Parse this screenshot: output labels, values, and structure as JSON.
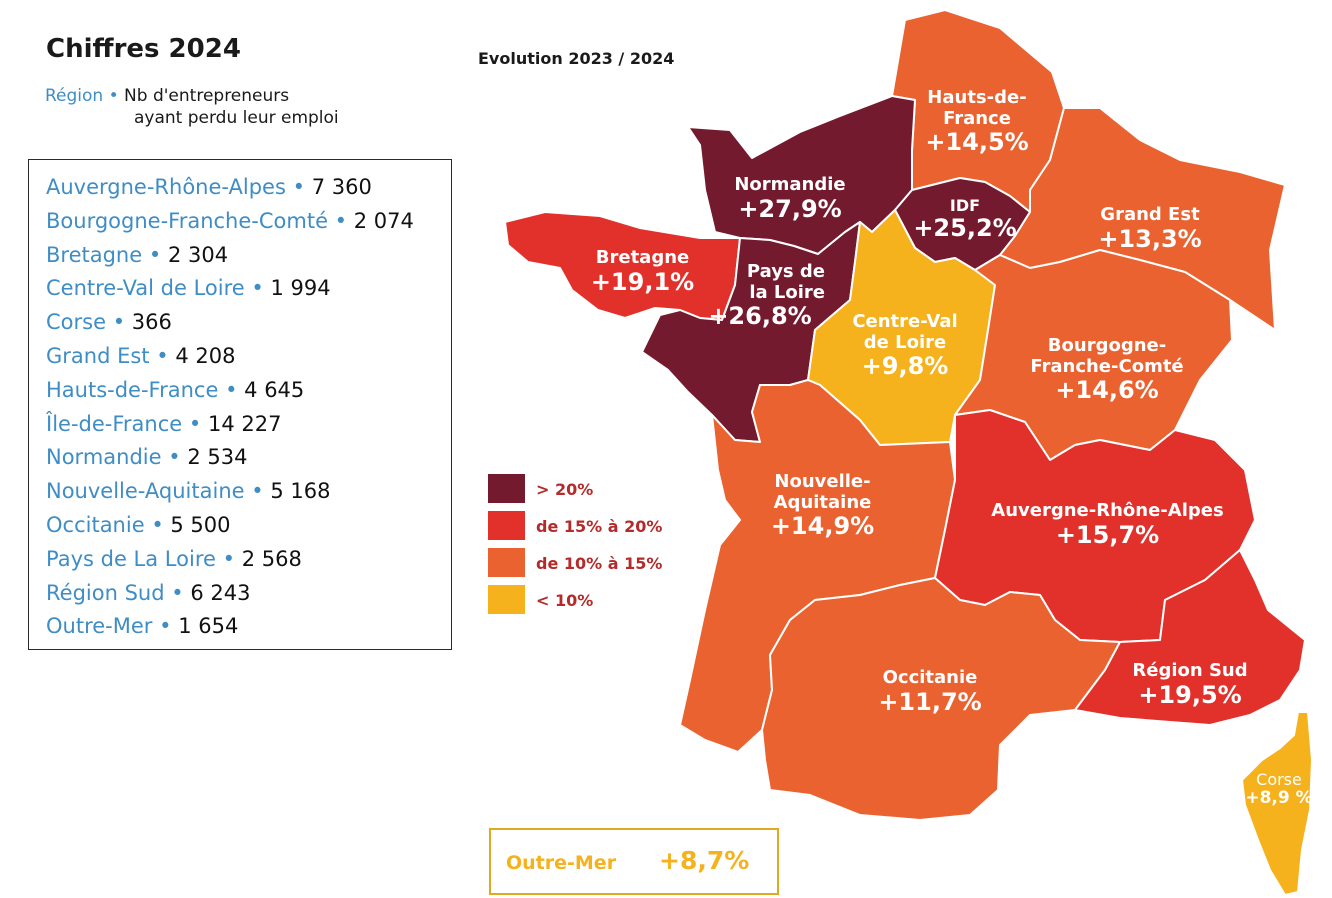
{
  "header": {
    "title": "Chiffres 2024",
    "subtitle_region": "Région",
    "subtitle_bullet": "•",
    "subtitle_line1": "Nb d'entrepreneurs",
    "subtitle_line2": "ayant perdu leur emploi",
    "evolution": "Evolution 2023 / 2024"
  },
  "list": [
    {
      "name": "Auvergne-Rhône-Alpes",
      "value": "7 360"
    },
    {
      "name": "Bourgogne-Franche-Comté",
      "value": "2 074"
    },
    {
      "name": "Bretagne",
      "value": "2 304"
    },
    {
      "name": "Centre-Val de Loire",
      "value": "1 994"
    },
    {
      "name": "Corse",
      "value": "366"
    },
    {
      "name": "Grand Est",
      "value": "4 208"
    },
    {
      "name": "Hauts-de-France",
      "value": "4 645"
    },
    {
      "name": "Île-de-France",
      "value": "14 227"
    },
    {
      "name": "Normandie",
      "value": "2 534"
    },
    {
      "name": "Nouvelle-Aquitaine",
      "value": "5 168"
    },
    {
      "name": "Occitanie",
      "value": "5 500"
    },
    {
      "name": "Pays de La Loire",
      "value": "2 568"
    },
    {
      "name": "Région Sud",
      "value": "6 243"
    },
    {
      "name": "Outre-Mer",
      "value": "1 654"
    }
  ],
  "legend": [
    {
      "label": "> 20%",
      "color": "#731a2f"
    },
    {
      "label": "de 15% à 20%",
      "color": "#e2302b"
    },
    {
      "label": "de 10% à 15%",
      "color": "#e96230"
    },
    {
      "label": "< 10%",
      "color": "#f5b21d"
    }
  ],
  "map_regions": [
    {
      "name": "Hauts-de-France",
      "value": "+14,5%",
      "color": "#e96230"
    },
    {
      "name": "Normandie",
      "value": "+27,9%",
      "color": "#731a2f"
    },
    {
      "name": "IDF",
      "value": "+25,2%",
      "color": "#731a2f"
    },
    {
      "name": "Grand Est",
      "value": "+13,3%",
      "color": "#e96230"
    },
    {
      "name": "Bretagne",
      "value": "+19,1%",
      "color": "#e2302b"
    },
    {
      "name": "Pays de la Loire",
      "value": "+26,8%",
      "color": "#731a2f"
    },
    {
      "name": "Centre-Val de Loire",
      "value": "+9,8%",
      "color": "#f5b21d"
    },
    {
      "name": "Bourgogne-Franche-Comté",
      "value": "+14,6%",
      "color": "#e96230"
    },
    {
      "name": "Nouvelle-Aquitaine",
      "value": "+14,9%",
      "color": "#e96230"
    },
    {
      "name": "Auvergne-Rhône-Alpes",
      "value": "+15,7%",
      "color": "#e2302b"
    },
    {
      "name": "Occitanie",
      "value": "+11,7%",
      "color": "#e96230"
    },
    {
      "name": "Région Sud",
      "value": "+19,5%",
      "color": "#e2302b"
    },
    {
      "name": "Corse",
      "value": "+8,9 %",
      "color": "#f5b21d"
    }
  ],
  "map_label_text": {
    "hdf_line1": "Hauts-de-",
    "hdf_line2": "France",
    "pdl_line1": "Pays de",
    "pdl_line2": "la Loire",
    "cvl_line1": "Centre-Val",
    "cvl_line2": "de Loire",
    "bfc_line1": "Bourgogne-",
    "bfc_line2": "Franche-Comté",
    "naq_line1": "Nouvelle-",
    "naq_line2": "Aquitaine"
  },
  "outremer": {
    "name": "Outre-Mer",
    "value": "+8,7%",
    "color": "#f5b21d"
  }
}
